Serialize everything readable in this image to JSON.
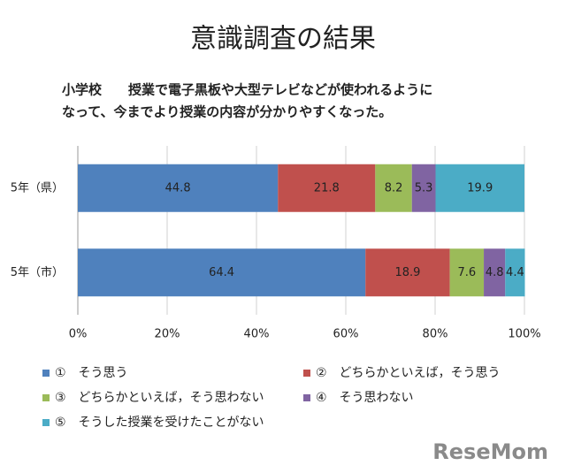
{
  "chart_data": {
    "type": "stacked-bar-horizontal",
    "title": "意識調査の結果",
    "subtitle": [
      "小学校　　授業で電子黒板や大型テレビなどが使われるように",
      "なって、今までより授業の内容が分かりやすくなった。"
    ],
    "categories": [
      "5年（県）",
      "5年（市）"
    ],
    "series": [
      {
        "name": "①　そう思う",
        "color": "#4f81bd",
        "values": [
          44.8,
          64.4
        ]
      },
      {
        "name": "②　どちらかといえば，そう思う",
        "color": "#c0504d",
        "values": [
          21.8,
          18.9
        ]
      },
      {
        "name": "③　どちらかといえば，そう思わない",
        "color": "#9bbb59",
        "values": [
          8.2,
          7.6
        ]
      },
      {
        "name": "④　そう思わない",
        "color": "#8064a2",
        "values": [
          5.3,
          4.8
        ]
      },
      {
        "name": "⑤　そうした授業を受けたことがない",
        "color": "#4bacc6",
        "values": [
          19.9,
          4.4
        ]
      }
    ],
    "xlim": [
      0,
      100
    ],
    "xticks": [
      {
        "value": 0,
        "label": "0%"
      },
      {
        "value": 20,
        "label": "20%"
      },
      {
        "value": 40,
        "label": "40%"
      },
      {
        "value": 60,
        "label": "60%"
      },
      {
        "value": 80,
        "label": "80%"
      },
      {
        "value": 100,
        "label": "100%"
      }
    ],
    "grid": true,
    "watermark": "ReseMom"
  }
}
